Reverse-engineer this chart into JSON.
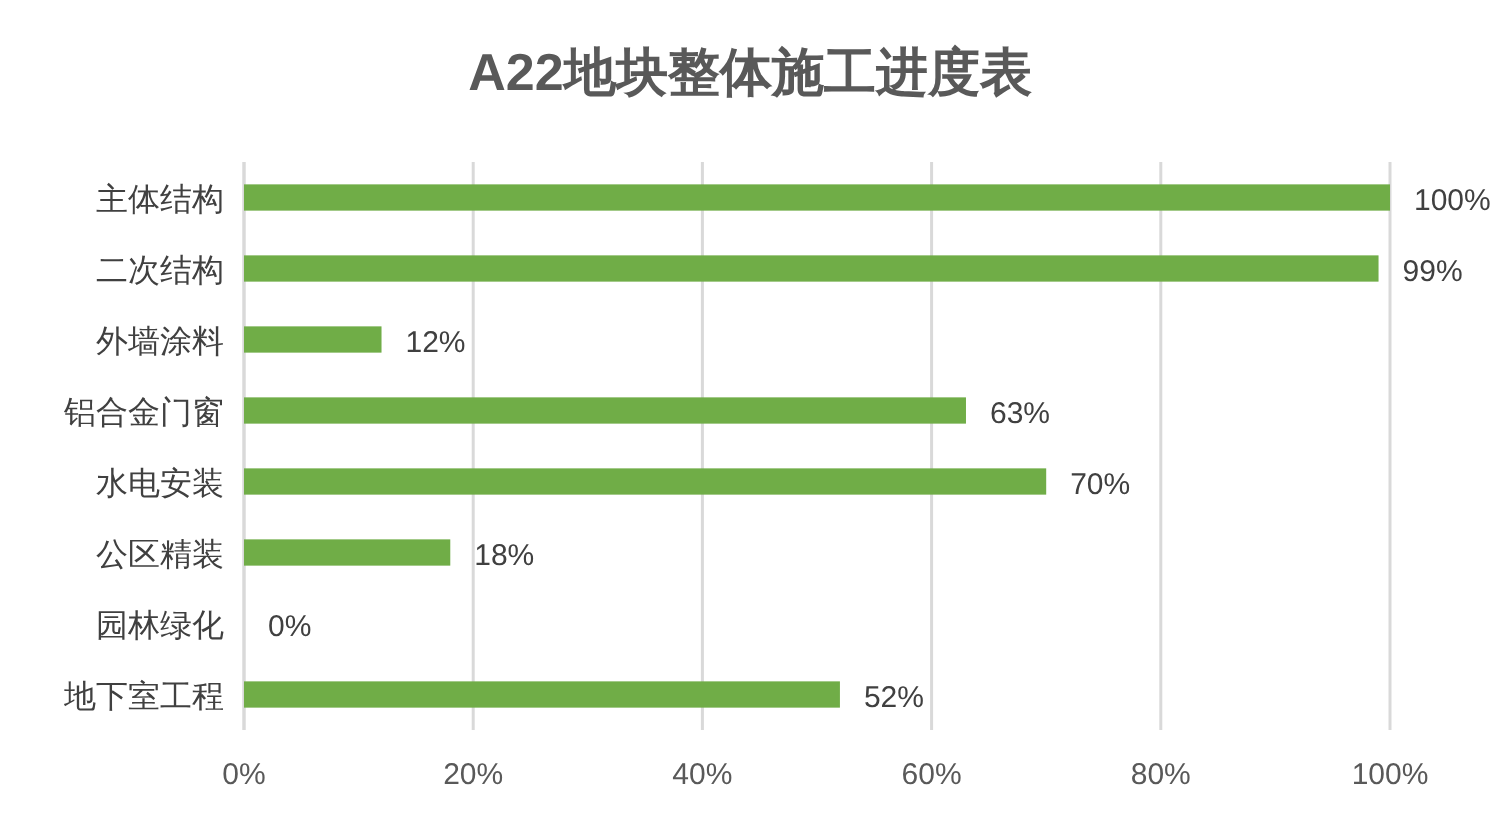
{
  "chart_data": {
    "type": "bar",
    "orientation": "horizontal",
    "title": "A22地块整体施工进度表",
    "categories": [
      "主体结构",
      "二次结构",
      "外墙涂料",
      "铝合金门窗",
      "水电安装",
      "公区精装",
      "园林绿化",
      "地下室工程"
    ],
    "values": [
      100,
      99,
      12,
      63,
      70,
      18,
      0,
      52
    ],
    "value_labels": [
      "100%",
      "99%",
      "12%",
      "63%",
      "70%",
      "18%",
      "0%",
      "52%"
    ],
    "color": "#70ad47",
    "xlim": [
      0,
      100
    ],
    "xticks": [
      {
        "value": 0,
        "label": "0%"
      },
      {
        "value": 20,
        "label": "20%"
      },
      {
        "value": 40,
        "label": "40%"
      },
      {
        "value": 60,
        "label": "60%"
      },
      {
        "value": 80,
        "label": "80%"
      },
      {
        "value": 100,
        "label": "100%"
      }
    ],
    "grid": "x"
  }
}
